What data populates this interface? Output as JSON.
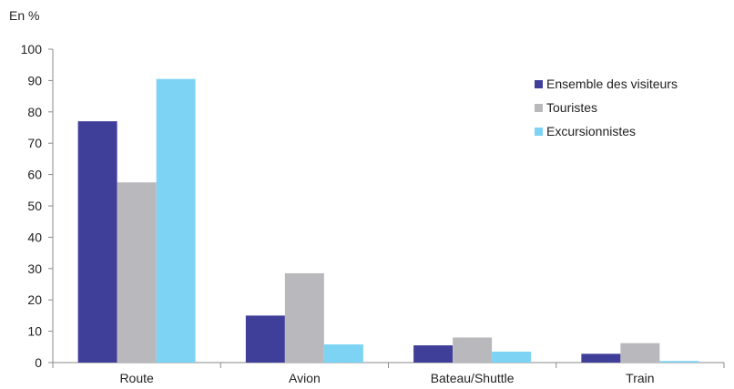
{
  "chart_data": {
    "type": "bar",
    "unit_label": "En %",
    "categories": [
      "Route",
      "Avion",
      "Bateau/Shuttle",
      "Train"
    ],
    "ylim": [
      0,
      100
    ],
    "yticks": [
      0,
      10,
      20,
      30,
      40,
      50,
      60,
      70,
      80,
      90,
      100
    ],
    "grid": false,
    "legend_position": "top-right",
    "series": [
      {
        "name": "Ensemble des visiteurs",
        "color": "#3f3f9a",
        "values": [
          77,
          15,
          5.5,
          2.8
        ]
      },
      {
        "name": "Touristes",
        "color": "#b9b9bd",
        "values": [
          57.5,
          28.5,
          8,
          6.2
        ]
      },
      {
        "name": "Excursionnistes",
        "color": "#7dd3f3",
        "values": [
          90.5,
          5.8,
          3.5,
          0.5
        ]
      }
    ]
  }
}
